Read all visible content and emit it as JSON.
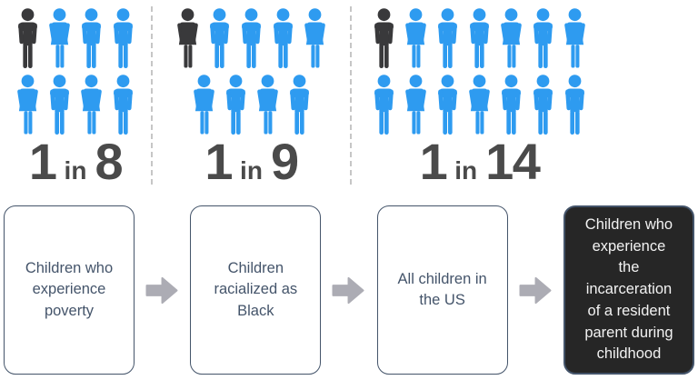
{
  "chart_data": {
    "type": "pictograph",
    "title": "",
    "categories": [
      "Children who experience poverty",
      "Children racialized as Black",
      "All children in the US"
    ],
    "ratios": [
      "1 in 8",
      "1 in 9",
      "1 in 14"
    ],
    "values": [
      8,
      9,
      14
    ],
    "highlighted_per_group": 1,
    "legend_position": "none",
    "note": "Each group shows total people icons with 1 dark highlighted icon; rates of experiencing incarceration of a resident parent during childhood"
  },
  "pictograph": {
    "groups": [
      {
        "label": {
          "value": "1",
          "connector": "in",
          "total": "8"
        },
        "rows": [
          [
            "man-dark",
            "woman",
            "man",
            "man"
          ],
          [
            "woman",
            "man",
            "woman",
            "man"
          ]
        ]
      },
      {
        "label": {
          "value": "1",
          "connector": "in",
          "total": "9"
        },
        "rows": [
          [
            "woman-dark",
            "man",
            "man",
            "man",
            "woman"
          ],
          [
            "woman",
            "man",
            "woman",
            "man"
          ]
        ]
      },
      {
        "label": {
          "value": "1",
          "connector": "in",
          "total": "14"
        },
        "rows": [
          [
            "man-dark",
            "woman",
            "man",
            "man",
            "woman",
            "man",
            "woman"
          ],
          [
            "man",
            "woman",
            "man",
            "woman",
            "man",
            "man",
            "man"
          ]
        ]
      }
    ],
    "colors": {
      "person_blue": "#2E9BF0",
      "person_dark": "#39393B",
      "label_text": "#4A4A4A",
      "divider": "#C6C6C6"
    }
  },
  "flow": {
    "boxes": [
      {
        "text": "Children who\nexperience\npoverty",
        "style": "light"
      },
      {
        "text": "Children\nracialized as\nBlack",
        "style": "light"
      },
      {
        "text": "All children in\nthe US",
        "style": "light"
      },
      {
        "text": "Children who\nexperience\nthe\nincarceration\nof a resident\nparent during\nchildhood",
        "style": "dark"
      }
    ],
    "colors": {
      "box_border": "#44546A",
      "box_text": "#44546A",
      "dark_box_bg": "#262626",
      "dark_box_text": "#F2F2F2",
      "arrow": "#ACACB4"
    }
  }
}
